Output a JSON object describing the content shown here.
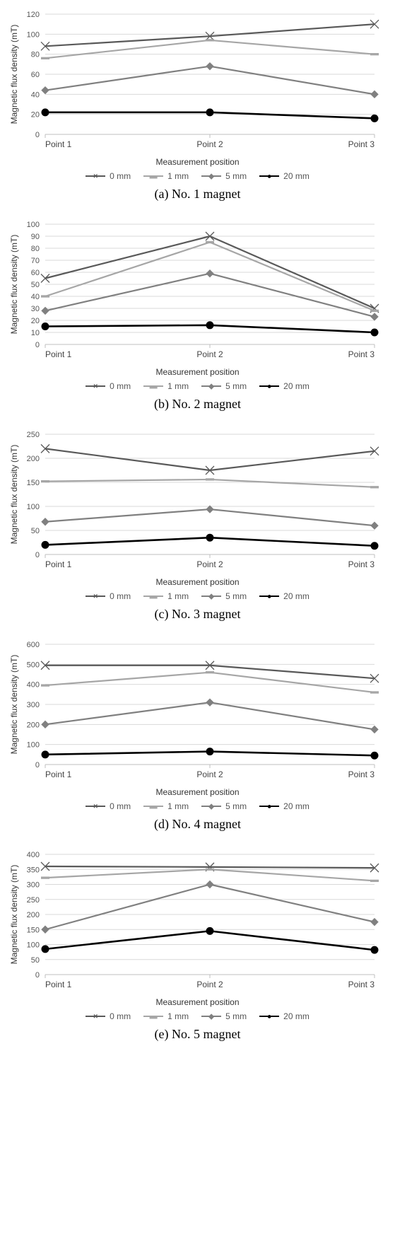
{
  "global": {
    "categories": [
      "Point 1",
      "Point 2",
      "Point 3"
    ],
    "x_axis_label": "Measurement position",
    "y_axis_label": "Magnetic flux density (mT)",
    "series_meta": [
      {
        "key": "s0",
        "label": "0 mm",
        "color": "#595959",
        "line_width": 2.2,
        "marker": "x",
        "marker_size": 6
      },
      {
        "key": "s1",
        "label": "1 mm",
        "color": "#a6a6a6",
        "line_width": 2.2,
        "marker": "dash",
        "marker_size": 6
      },
      {
        "key": "s2",
        "label": "5 mm",
        "color": "#808080",
        "line_width": 2.2,
        "marker": "diamond",
        "marker_size": 5
      },
      {
        "key": "s3",
        "label": "20 mm",
        "color": "#000000",
        "line_width": 2.6,
        "marker": "circle",
        "marker_size": 5
      }
    ],
    "background_color": "#ffffff",
    "grid_color": "#d9d9d9",
    "axis_color": "#bfbfbf",
    "tick_font_size": 11,
    "label_font_size": 12,
    "chart_font": "Arial, Helvetica, sans-serif",
    "caption_font": "\"Times New Roman\", Times, serif",
    "caption_font_size": 18
  },
  "panels": [
    {
      "id": "a",
      "caption": "(a) No. 1 magnet",
      "ylim": [
        0,
        120
      ],
      "ytick_step": 20,
      "series": {
        "s0": [
          88,
          98,
          110
        ],
        "s1": [
          76,
          94,
          80
        ],
        "s2": [
          44,
          68,
          40
        ],
        "s3": [
          22,
          22,
          16
        ]
      }
    },
    {
      "id": "b",
      "caption": "(b) No. 2 magnet",
      "ylim": [
        0,
        100
      ],
      "ytick_step": 10,
      "series": {
        "s0": [
          55,
          90,
          30
        ],
        "s1": [
          40,
          85,
          28
        ],
        "s2": [
          28,
          59,
          23
        ],
        "s3": [
          15,
          16,
          10
        ]
      }
    },
    {
      "id": "c",
      "caption": "(c) No. 3 magnet",
      "ylim": [
        0,
        250
      ],
      "ytick_step": 50,
      "series": {
        "s0": [
          220,
          175,
          215
        ],
        "s1": [
          152,
          156,
          140
        ],
        "s2": [
          68,
          94,
          60
        ],
        "s3": [
          20,
          35,
          18
        ]
      }
    },
    {
      "id": "d",
      "caption": "(d) No. 4 magnet",
      "ylim": [
        0,
        600
      ],
      "ytick_step": 100,
      "series": {
        "s0": [
          495,
          495,
          430
        ],
        "s1": [
          395,
          460,
          360
        ],
        "s2": [
          200,
          310,
          175
        ],
        "s3": [
          50,
          65,
          45
        ]
      }
    },
    {
      "id": "e",
      "caption": "(e) No. 5 magnet",
      "ylim": [
        0,
        400
      ],
      "ytick_step": 50,
      "series": {
        "s0": [
          360,
          358,
          355
        ],
        "s1": [
          322,
          350,
          312
        ],
        "s2": [
          150,
          300,
          175
        ],
        "s3": [
          85,
          145,
          82
        ]
      }
    }
  ]
}
